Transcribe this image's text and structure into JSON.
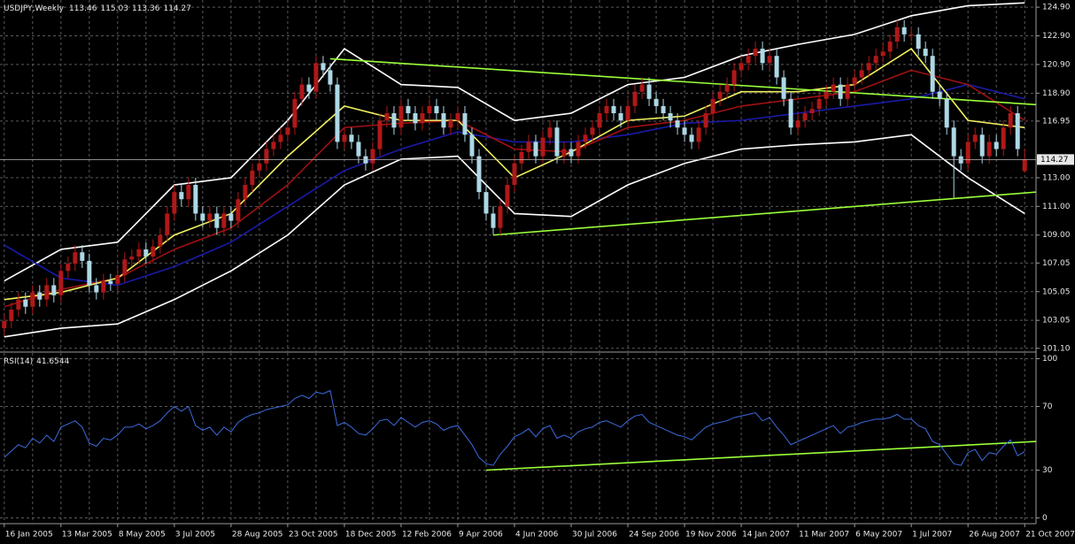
{
  "chart_data": [
    {
      "type": "candlestick",
      "title": "USDJPY,Weekly",
      "categories": [
        "16 Jan 2005",
        null,
        null,
        null,
        null,
        null,
        null,
        null,
        "13 Mar 2005",
        null,
        null,
        null,
        null,
        null,
        null,
        null,
        "8 May 2005",
        null,
        null,
        null,
        null,
        null,
        null,
        null,
        "3 Jul 2005",
        null,
        null,
        null,
        null,
        null,
        null,
        null,
        "28 Aug 2005",
        null,
        null,
        null,
        null,
        null,
        null,
        null,
        "23 Oct 2005",
        null,
        null,
        null,
        null,
        null,
        null,
        null,
        "18 Dec 2005",
        null,
        null,
        null,
        null,
        null,
        null,
        null,
        "12 Feb 2006",
        null,
        null,
        null,
        null,
        null,
        null,
        null,
        "9 Apr 2006",
        null,
        null,
        null,
        null,
        null,
        null,
        null,
        "4 Jun 2006",
        null,
        null,
        null,
        null,
        null,
        null,
        null,
        "30 Jul 2006",
        null,
        null,
        null,
        null,
        null,
        null,
        null,
        "24 Sep 2006",
        null,
        null,
        null,
        null,
        null,
        null,
        null,
        "19 Nov 2006",
        null,
        null,
        null,
        null,
        null,
        null,
        null,
        "14 Jan 2007",
        null,
        null,
        null,
        null,
        null,
        null,
        null,
        "11 Mar 2007",
        null,
        null,
        null,
        null,
        null,
        null,
        null,
        "6 May 2007",
        null,
        null,
        null,
        null,
        null,
        null,
        null,
        "1 Jul 2007",
        null,
        null,
        null,
        null,
        null,
        null,
        null,
        "26 Aug 2007",
        null,
        null,
        null,
        null,
        null,
        null,
        null,
        "21 Oct 2007"
      ],
      "open": [
        102.5,
        103.0,
        103.8,
        104.5,
        104.0,
        105.0,
        104.5,
        105.5,
        104.8,
        106.5,
        107.0,
        107.8,
        107.2,
        105.5,
        105.0,
        105.8,
        105.6,
        106.2,
        107.3,
        107.5,
        108.0,
        107.5,
        108.2,
        109.0,
        110.5,
        112.0,
        111.5,
        112.5,
        110.5,
        110.0,
        110.5,
        109.5,
        110.5,
        110.0,
        111.5,
        112.5,
        113.5,
        114.0,
        115.0,
        115.5,
        116.0,
        116.5,
        118.5,
        119.5,
        119.0,
        121.0,
        120.5,
        119.5,
        115.5,
        116.0,
        115.5,
        114.5,
        114.0,
        115.0,
        117.0,
        117.5,
        116.5,
        118.0,
        117.5,
        116.8,
        117.5,
        118.0,
        117.5,
        116.5,
        117.0,
        117.5,
        116.0,
        114.5,
        112.0,
        110.5,
        109.5,
        111.0,
        112.5,
        114.0,
        114.8,
        115.5,
        114.5,
        115.8,
        116.5,
        114.5,
        115.0,
        114.5,
        115.5,
        116.0,
        116.5,
        117.5,
        118.0,
        117.5,
        117.0,
        118.0,
        119.0,
        119.5,
        118.5,
        118.0,
        117.5,
        117.0,
        116.5,
        116.0,
        115.5,
        116.5,
        117.5,
        118.5,
        119.0,
        119.5,
        120.5,
        121.0,
        121.5,
        122.0,
        121.0,
        121.5,
        120.0,
        118.5,
        116.5,
        117.0,
        117.5,
        117.8,
        118.5,
        119.0,
        119.5,
        118.5,
        119.5,
        120.0,
        120.5,
        121.0,
        121.5,
        121.8,
        122.5,
        123.5,
        123.0,
        123.0,
        122.0,
        121.5,
        119.0,
        118.5,
        116.5,
        114.5,
        114.0,
        115.5,
        116.0,
        114.5,
        115.5,
        115.0,
        116.5,
        117.5,
        113.46
      ],
      "high": [
        103.5,
        104.3,
        105.0,
        105.0,
        105.5,
        105.5,
        106.0,
        106.0,
        107.0,
        107.5,
        108.3,
        108.3,
        107.7,
        106.0,
        106.3,
        106.3,
        106.7,
        107.8,
        108.0,
        108.5,
        108.5,
        108.7,
        109.5,
        111.0,
        112.5,
        112.5,
        113.0,
        113.0,
        111.0,
        111.0,
        111.0,
        111.0,
        111.0,
        112.0,
        113.0,
        114.0,
        114.5,
        115.5,
        116.0,
        116.5,
        117.0,
        119.0,
        120.0,
        120.0,
        121.5,
        121.5,
        121.0,
        120.0,
        116.5,
        116.5,
        116.0,
        115.0,
        115.5,
        117.5,
        118.0,
        118.0,
        118.5,
        118.5,
        118.0,
        118.0,
        118.5,
        118.5,
        118.0,
        117.5,
        118.0,
        118.0,
        116.5,
        115.0,
        112.5,
        111.0,
        111.5,
        113.0,
        114.5,
        115.3,
        116.0,
        116.0,
        116.3,
        117.0,
        117.0,
        115.5,
        115.5,
        116.0,
        116.5,
        117.0,
        118.0,
        118.5,
        118.5,
        118.0,
        118.5,
        119.5,
        120.0,
        120.0,
        119.0,
        118.5,
        118.0,
        117.5,
        117.0,
        116.5,
        117.0,
        118.0,
        119.0,
        119.5,
        120.0,
        121.0,
        121.5,
        122.0,
        122.5,
        122.5,
        122.0,
        122.0,
        120.5,
        119.0,
        117.5,
        118.0,
        118.3,
        119.0,
        119.5,
        120.0,
        120.0,
        120.0,
        120.5,
        121.0,
        121.5,
        122.0,
        122.3,
        123.0,
        124.0,
        124.0,
        123.5,
        123.5,
        122.5,
        122.0,
        119.5,
        119.0,
        117.0,
        115.0,
        116.0,
        116.5,
        116.5,
        116.0,
        116.0,
        117.0,
        118.0,
        118.0,
        115.03
      ],
      "low": [
        102.0,
        102.5,
        103.3,
        103.5,
        103.5,
        104.0,
        104.0,
        104.3,
        104.3,
        106.0,
        106.5,
        106.7,
        105.0,
        104.5,
        104.5,
        105.1,
        105.1,
        105.7,
        106.8,
        107.0,
        107.0,
        107.0,
        107.7,
        108.5,
        110.0,
        111.0,
        111.0,
        110.0,
        109.5,
        109.5,
        109.0,
        109.0,
        109.5,
        109.5,
        111.0,
        112.0,
        113.0,
        113.5,
        114.5,
        115.0,
        115.5,
        116.0,
        118.0,
        118.5,
        118.5,
        120.0,
        119.0,
        115.0,
        115.0,
        115.0,
        114.0,
        113.5,
        113.5,
        114.5,
        116.5,
        116.0,
        116.0,
        117.0,
        116.3,
        116.3,
        117.0,
        117.0,
        116.0,
        116.0,
        116.5,
        115.5,
        114.0,
        111.5,
        110.0,
        109.0,
        109.0,
        110.5,
        112.0,
        113.5,
        114.3,
        114.0,
        114.0,
        115.3,
        114.0,
        114.0,
        114.0,
        114.0,
        115.0,
        115.5,
        116.0,
        117.0,
        117.0,
        116.5,
        116.5,
        117.5,
        118.5,
        118.0,
        117.5,
        117.0,
        116.5,
        116.0,
        115.5,
        115.0,
        115.0,
        116.0,
        117.0,
        118.0,
        118.5,
        119.0,
        120.0,
        120.5,
        121.0,
        120.5,
        120.5,
        119.5,
        118.0,
        116.0,
        116.0,
        116.5,
        117.0,
        117.3,
        118.0,
        118.5,
        118.0,
        118.0,
        119.0,
        119.5,
        120.0,
        120.5,
        121.0,
        121.3,
        122.0,
        122.5,
        122.5,
        121.5,
        121.0,
        118.5,
        118.0,
        116.0,
        111.6,
        113.5,
        113.5,
        115.0,
        114.0,
        114.0,
        114.5,
        114.5,
        116.0,
        114.5,
        113.36
      ],
      "close": [
        103.0,
        103.8,
        104.5,
        104.0,
        105.0,
        104.5,
        105.5,
        104.8,
        106.5,
        107.0,
        107.8,
        107.2,
        105.5,
        105.0,
        105.8,
        105.6,
        106.2,
        107.3,
        107.5,
        108.0,
        107.5,
        108.2,
        109.0,
        110.5,
        112.0,
        111.5,
        112.5,
        110.5,
        110.0,
        110.5,
        109.5,
        110.5,
        110.0,
        111.5,
        112.5,
        113.5,
        114.0,
        115.0,
        115.5,
        116.0,
        116.5,
        118.5,
        119.5,
        119.0,
        121.0,
        120.5,
        119.5,
        115.5,
        116.0,
        115.5,
        114.5,
        114.0,
        115.0,
        117.0,
        117.5,
        116.5,
        118.0,
        117.5,
        116.8,
        117.5,
        118.0,
        117.5,
        116.5,
        117.0,
        117.5,
        116.0,
        114.5,
        112.0,
        110.5,
        109.5,
        111.0,
        112.5,
        114.0,
        114.8,
        115.5,
        114.5,
        115.8,
        116.5,
        114.5,
        115.0,
        114.5,
        115.5,
        116.0,
        116.5,
        117.5,
        118.0,
        117.5,
        117.0,
        118.0,
        119.0,
        119.5,
        118.5,
        118.0,
        117.5,
        117.0,
        116.5,
        116.0,
        115.5,
        116.5,
        117.5,
        118.5,
        119.0,
        119.5,
        120.5,
        121.0,
        121.5,
        122.0,
        121.0,
        121.5,
        120.0,
        118.5,
        116.5,
        117.0,
        117.5,
        117.8,
        118.5,
        119.0,
        119.5,
        118.5,
        119.5,
        120.0,
        120.5,
        121.0,
        121.5,
        121.8,
        122.5,
        123.5,
        123.0,
        123.0,
        122.0,
        121.5,
        119.0,
        118.5,
        116.5,
        114.5,
        114.0,
        115.5,
        116.0,
        114.5,
        115.5,
        115.0,
        116.5,
        117.5,
        115.0,
        114.27
      ],
      "up_color": "#b01818",
      "down_color": "#add8e6",
      "series": [
        {
          "color": "#ffffff",
          "x": [
            0,
            8,
            16,
            24,
            32,
            40,
            48,
            56,
            64,
            72,
            80,
            88,
            96,
            104,
            112,
            120,
            128,
            136,
            144
          ],
          "values": [
            105.8,
            108.0,
            108.5,
            112.5,
            113.0,
            117.0,
            122.0,
            119.5,
            119.3,
            117.0,
            117.5,
            119.5,
            120.0,
            121.5,
            122.3,
            123.0,
            124.3,
            125.0,
            125.2
          ]
        },
        {
          "color": "#ffffff",
          "x": [
            0,
            8,
            16,
            24,
            32,
            40,
            48,
            56,
            64,
            72,
            80,
            88,
            96,
            104,
            112,
            120,
            128,
            136,
            144
          ],
          "values": [
            101.9,
            102.5,
            102.8,
            104.5,
            106.5,
            109.0,
            112.5,
            114.3,
            114.5,
            110.5,
            110.3,
            112.5,
            114.0,
            115.0,
            115.3,
            115.5,
            116.0,
            113.0,
            110.5
          ]
        },
        {
          "color": "#1a1aa8",
          "x": [
            0,
            8,
            16,
            24,
            32,
            40,
            48,
            56,
            64,
            72,
            80,
            88,
            96,
            104,
            112,
            120,
            128,
            136,
            144
          ],
          "values": [
            108.3,
            106.0,
            105.5,
            106.8,
            108.5,
            111.0,
            113.5,
            115.0,
            116.2,
            115.5,
            115.5,
            116.0,
            116.8,
            117.0,
            117.5,
            118.0,
            118.5,
            119.5,
            118.5
          ]
        },
        {
          "color": "#a01010",
          "x": [
            0,
            8,
            16,
            24,
            32,
            40,
            48,
            56,
            64,
            72,
            80,
            88,
            96,
            104,
            112,
            120,
            128,
            136,
            144
          ],
          "values": [
            104.0,
            105.2,
            106.0,
            108.0,
            109.5,
            112.5,
            116.5,
            116.8,
            117.0,
            115.0,
            114.8,
            116.5,
            117.0,
            118.0,
            118.5,
            119.0,
            120.5,
            119.5,
            117.0
          ]
        },
        {
          "color": "#f0f060",
          "x": [
            0,
            8,
            16,
            24,
            32,
            40,
            48,
            56,
            64,
            72,
            80,
            88,
            96,
            104,
            112,
            120,
            128,
            136,
            144
          ],
          "values": [
            104.5,
            105.0,
            106.0,
            109.0,
            110.5,
            114.5,
            118.0,
            117.0,
            117.0,
            113.0,
            114.8,
            117.0,
            117.3,
            119.0,
            119.0,
            119.5,
            122.0,
            117.0,
            116.5
          ]
        },
        {
          "color": "#9aff3a",
          "x": [
            46,
            145.6
          ],
          "values": [
            121.3,
            118.1
          ]
        },
        {
          "color": "#9aff3a",
          "x": [
            69,
            145.6
          ],
          "values": [
            109.0,
            112.0
          ]
        }
      ],
      "xlim": [
        -0.6,
        145.6
      ],
      "ylim": [
        100.9,
        125.4
      ],
      "yticks": [
        {
          "value": 124.9,
          "label": "124.90"
        },
        {
          "value": 122.9,
          "label": "122.90"
        },
        {
          "value": 120.9,
          "label": "120.90"
        },
        {
          "value": 118.9,
          "label": "118.90"
        },
        116.95,
        {
          "value": 113,
          "label": "113.00"
        },
        {
          "value": 111,
          "label": "111.00"
        },
        {
          "value": 109,
          "label": "109.00"
        },
        107.05,
        105.05,
        103.05,
        {
          "value": 101.1,
          "label": "101.10"
        }
      ],
      "grid": true
    },
    {
      "type": "line",
      "title": "RSI(14)",
      "color": "#3d6be0",
      "values": [
        38,
        42,
        46,
        44,
        50,
        47,
        52,
        48,
        57,
        59,
        61,
        57,
        47,
        45,
        50,
        49,
        52,
        57,
        57,
        59,
        56,
        58,
        61,
        66,
        70,
        67,
        70,
        58,
        55,
        57,
        52,
        57,
        54,
        60,
        63,
        65,
        66,
        68,
        69,
        70,
        71,
        75,
        77,
        75,
        79,
        78,
        80,
        58,
        60,
        57,
        53,
        52,
        56,
        61,
        62,
        58,
        63,
        60,
        57,
        60,
        61,
        59,
        55,
        57,
        58,
        52,
        46,
        38,
        34,
        33,
        40,
        45,
        51,
        53,
        56,
        51,
        56,
        58,
        50,
        52,
        50,
        54,
        56,
        57,
        60,
        61,
        59,
        57,
        61,
        64,
        65,
        60,
        58,
        56,
        54,
        52,
        51,
        49,
        53,
        57,
        59,
        60,
        61,
        63,
        64,
        65,
        66,
        61,
        63,
        57,
        52,
        46,
        48,
        50,
        52,
        54,
        56,
        58,
        53,
        57,
        58,
        60,
        61,
        62,
        62,
        63,
        65,
        62,
        62,
        58,
        56,
        48,
        46,
        40,
        34,
        33,
        41,
        43,
        36,
        41,
        40,
        45,
        49,
        39,
        41.6544
      ],
      "series": [
        {
          "color": "#9aff3a",
          "x": [
            68,
            145.6
          ],
          "values": [
            30,
            48
          ]
        }
      ],
      "xlim": [
        -0.6,
        145.6
      ],
      "ylim": [
        -3.6,
        103.6
      ],
      "yticks": [
        100,
        70,
        30,
        0
      ],
      "grid": true
    }
  ]
}
